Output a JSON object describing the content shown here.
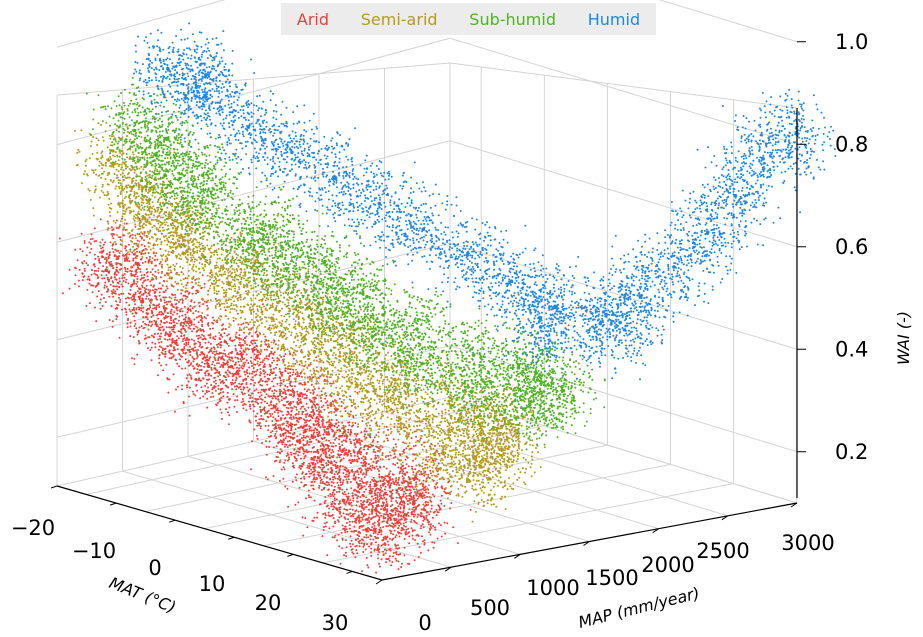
{
  "colors": {
    "arid": "#e8413a",
    "semi_arid": "#b39b1e",
    "sub_humid": "#4fb224",
    "humid": "#1f87e0",
    "grid": "#d4d4d4",
    "axis": "#000000"
  },
  "legend": {
    "items": [
      {
        "label": "Arid",
        "color": "#e8413a"
      },
      {
        "label": "Semi-arid",
        "color": "#b39b1e"
      },
      {
        "label": "Sub-humid",
        "color": "#4fb224"
      },
      {
        "label": "Humid",
        "color": "#1f87e0"
      }
    ]
  },
  "chart_data": {
    "type": "scatter",
    "projection": "3d",
    "title": "",
    "x_axis": {
      "label": "MAT (°C)",
      "ticks": [
        "−20",
        "−10",
        "0",
        "10",
        "20",
        "30"
      ],
      "range": [
        -25,
        30
      ]
    },
    "y_axis": {
      "label": "MAP (mm/year)",
      "ticks": [
        "0",
        "500",
        "1000",
        "1500",
        "2000",
        "2500",
        "3000"
      ],
      "range": [
        0,
        3000
      ]
    },
    "z_axis": {
      "label": "WAI (-)",
      "ticks": [
        "0.2",
        "0.4",
        "0.6",
        "0.8",
        "1.0"
      ],
      "range": [
        0.1,
        1.0
      ]
    },
    "legend_position": "top-center",
    "grid": true,
    "series": [
      {
        "name": "Arid",
        "color": "#e8413a",
        "points": [
          [
            -20,
            150,
            0.55
          ],
          [
            -15,
            200,
            0.5
          ],
          [
            -10,
            180,
            0.45
          ],
          [
            -5,
            250,
            0.4
          ],
          [
            0,
            200,
            0.42
          ],
          [
            5,
            300,
            0.35
          ],
          [
            10,
            250,
            0.3
          ],
          [
            15,
            200,
            0.28
          ],
          [
            20,
            150,
            0.22
          ],
          [
            25,
            100,
            0.18
          ],
          [
            28,
            200,
            0.2
          ],
          [
            22,
            300,
            0.25
          ],
          [
            18,
            350,
            0.3
          ],
          [
            12,
            400,
            0.33
          ],
          [
            8,
            350,
            0.38
          ],
          [
            2,
            300,
            0.44
          ],
          [
            -8,
            250,
            0.48
          ],
          [
            -18,
            300,
            0.56
          ],
          [
            26,
            400,
            0.22
          ],
          [
            24,
            500,
            0.26
          ]
        ]
      },
      {
        "name": "Semi-arid",
        "color": "#b39b1e",
        "points": [
          [
            -22,
            300,
            0.75
          ],
          [
            -18,
            350,
            0.65
          ],
          [
            -12,
            400,
            0.6
          ],
          [
            -6,
            450,
            0.55
          ],
          [
            0,
            500,
            0.5
          ],
          [
            6,
            550,
            0.45
          ],
          [
            12,
            600,
            0.4
          ],
          [
            18,
            650,
            0.35
          ],
          [
            24,
            700,
            0.3
          ],
          [
            28,
            800,
            0.28
          ],
          [
            26,
            900,
            0.32
          ],
          [
            22,
            850,
            0.38
          ],
          [
            16,
            700,
            0.42
          ],
          [
            10,
            650,
            0.48
          ],
          [
            4,
            600,
            0.53
          ],
          [
            -4,
            550,
            0.58
          ],
          [
            -14,
            500,
            0.62
          ],
          [
            -20,
            450,
            0.7
          ],
          [
            27,
            1000,
            0.3
          ],
          [
            25,
            1100,
            0.35
          ]
        ]
      },
      {
        "name": "Sub-humid",
        "color": "#4fb224",
        "points": [
          [
            -23,
            500,
            0.8
          ],
          [
            -19,
            550,
            0.72
          ],
          [
            -14,
            600,
            0.68
          ],
          [
            -8,
            650,
            0.62
          ],
          [
            -2,
            700,
            0.58
          ],
          [
            4,
            750,
            0.53
          ],
          [
            10,
            800,
            0.48
          ],
          [
            16,
            900,
            0.44
          ],
          [
            22,
            1000,
            0.4
          ],
          [
            27,
            1200,
            0.38
          ],
          [
            26,
            1300,
            0.42
          ],
          [
            20,
            1100,
            0.46
          ],
          [
            14,
            950,
            0.5
          ],
          [
            8,
            850,
            0.55
          ],
          [
            2,
            800,
            0.6
          ],
          [
            -6,
            750,
            0.65
          ],
          [
            -16,
            700,
            0.72
          ],
          [
            -21,
            650,
            0.78
          ],
          [
            28,
            1400,
            0.4
          ],
          [
            24,
            1250,
            0.44
          ]
        ]
      },
      {
        "name": "Humid",
        "color": "#1f87e0",
        "points": [
          [
            -24,
            800,
            0.9
          ],
          [
            -20,
            900,
            0.85
          ],
          [
            -15,
            1000,
            0.8
          ],
          [
            -10,
            1100,
            0.76
          ],
          [
            -5,
            1200,
            0.72
          ],
          [
            0,
            1300,
            0.68
          ],
          [
            5,
            1400,
            0.64
          ],
          [
            10,
            1500,
            0.6
          ],
          [
            15,
            1600,
            0.56
          ],
          [
            20,
            1700,
            0.52
          ],
          [
            25,
            1800,
            0.5
          ],
          [
            27,
            2000,
            0.55
          ],
          [
            28,
            2200,
            0.6
          ],
          [
            29,
            2400,
            0.66
          ],
          [
            29,
            2600,
            0.72
          ],
          [
            29,
            2800,
            0.78
          ],
          [
            30,
            3000,
            0.82
          ],
          [
            26,
            1900,
            0.5
          ],
          [
            22,
            1500,
            0.5
          ],
          [
            -22,
            1000,
            0.88
          ]
        ]
      }
    ]
  }
}
